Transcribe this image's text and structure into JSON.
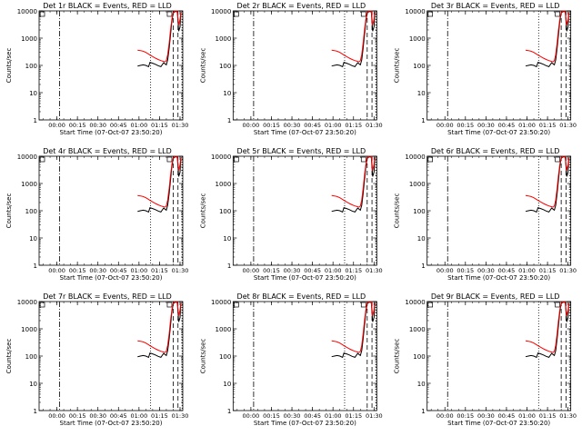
{
  "panels": [
    {
      "id": "1r",
      "title": "Det 1r BLACK = Events, RED = LLD"
    },
    {
      "id": "2r",
      "title": "Det 2r BLACK = Events, RED = LLD"
    },
    {
      "id": "3r",
      "title": "Det 3r BLACK = Events, RED = LLD"
    },
    {
      "id": "4r",
      "title": "Det 4r BLACK = Events, RED = LLD"
    },
    {
      "id": "5r",
      "title": "Det 5r BLACK = Events, RED = LLD"
    },
    {
      "id": "6r",
      "title": "Det 6r BLACK = Events, RED = LLD"
    },
    {
      "id": "7r",
      "title": "Det 7r BLACK = Events, RED = LLD"
    },
    {
      "id": "8r",
      "title": "Det 8r BLACK = Events, RED = LLD"
    },
    {
      "id": "9r",
      "title": "Det 9r BLACK = Events, RED = LLD"
    }
  ],
  "chart_data": {
    "type": "line",
    "panel_count": 9,
    "ylabel": "Counts/sec",
    "xlabel": "Start Time (07-Oct-07 23:50:20)",
    "y_scale": "log",
    "ylim": [
      1,
      10000
    ],
    "y_ticks": [
      "1",
      "10",
      "100",
      "1000",
      "10000"
    ],
    "x_range_minutes": [
      -3,
      102
    ],
    "x_ticks": [
      {
        "minute": 10,
        "label": "00:00"
      },
      {
        "minute": 25,
        "label": "00:15"
      },
      {
        "minute": 40,
        "label": "00:30"
      },
      {
        "minute": 55,
        "label": "00:45"
      },
      {
        "minute": 70,
        "label": "01:00"
      },
      {
        "minute": 85,
        "label": "01:15"
      },
      {
        "minute": 100,
        "label": "01:30"
      }
    ],
    "vertical_markers": [
      {
        "minute": 12,
        "style": "dash-dot"
      },
      {
        "minute": 78.5,
        "style": "dotted"
      },
      {
        "minute": 95,
        "style": "dashed"
      },
      {
        "minute": 98.5,
        "style": "dashed"
      },
      {
        "minute": 101.5,
        "style": "dotted"
      }
    ],
    "series": [
      {
        "name": "Events",
        "color": "#000000",
        "x": [
          69,
          71,
          73,
          75,
          77,
          78,
          80,
          82,
          84,
          86,
          88,
          89,
          90,
          91,
          92,
          93,
          94,
          95,
          96,
          97,
          98,
          99,
          100,
          100.5
        ],
        "y": [
          95,
          100,
          105,
          100,
          90,
          130,
          120,
          110,
          98,
          90,
          125,
          115,
          105,
          160,
          420,
          1300,
          4200,
          8200,
          9300,
          9500,
          9200,
          1800,
          2600,
          8000
        ]
      },
      {
        "name": "LLD",
        "color": "#ff0000",
        "x": [
          69,
          71,
          73,
          75,
          77,
          78,
          80,
          82,
          84,
          86,
          88,
          89,
          90,
          91,
          92,
          93,
          94,
          95,
          96,
          97,
          98,
          99,
          100,
          100.5
        ],
        "y": [
          360,
          350,
          330,
          300,
          260,
          240,
          210,
          185,
          165,
          150,
          140,
          135,
          150,
          250,
          650,
          2000,
          5000,
          9000,
          9800,
          10000,
          9800,
          3000,
          5000,
          9000
        ]
      }
    ]
  }
}
